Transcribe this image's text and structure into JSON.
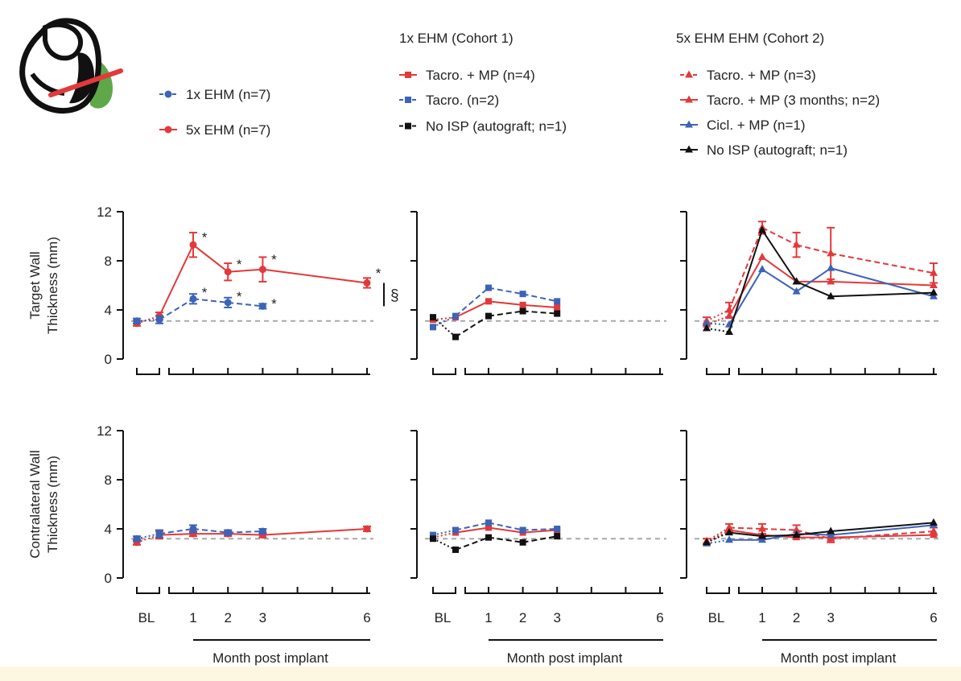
{
  "colors": {
    "red": "#e2393b",
    "blue": "#3b63b8",
    "black": "#111111",
    "ref": "#a8a8a8",
    "green": "#5fa84a"
  },
  "icon": "heart-cross-section-icon",
  "legends": {
    "p1": [
      {
        "label": "1x EHM (n=7)",
        "color": "#3b63b8",
        "marker": "circle",
        "dash": true
      },
      {
        "label": "5x EHM (n=7)",
        "color": "#e2393b",
        "marker": "circle",
        "dash": false
      }
    ],
    "p2_title": "1x EHM (Cohort 1)",
    "p2": [
      {
        "label": "Tacro. + MP (n=4)",
        "color": "#e2393b",
        "marker": "square",
        "dash": false
      },
      {
        "label": "Tacro. (n=2)",
        "color": "#3b63b8",
        "marker": "square",
        "dash": true
      },
      {
        "label": "No ISP (autograft; n=1)",
        "color": "#111111",
        "marker": "square",
        "dash": true
      }
    ],
    "p3_title": "5x EHM EHM (Cohort 2)",
    "p3": [
      {
        "label": "Tacro. + MP (n=3)",
        "color": "#e2393b",
        "marker": "triangle",
        "dash": true
      },
      {
        "label": "Tacro. + MP (3 months; n=2)",
        "color": "#e2393b",
        "marker": "triangle",
        "dash": false
      },
      {
        "label": "Cicl. + MP (n=1)",
        "color": "#3b63b8",
        "marker": "triangle",
        "dash": false
      },
      {
        "label": "No ISP (autograft; n=1)",
        "color": "#111111",
        "marker": "triangle",
        "dash": false
      }
    ]
  },
  "sig": {
    "star": "*",
    "section": "§"
  },
  "chart_data": [
    {
      "type": "line",
      "panel": "target-1",
      "ylabel": [
        "Target Wall",
        "Thickness (mm)"
      ],
      "ylim": [
        0,
        12
      ],
      "yticks": [
        0,
        4,
        8,
        12
      ],
      "xticks": [
        "BL",
        "1",
        "2",
        "3",
        "6"
      ],
      "xlabel": "Month post implant",
      "reference_line": 3.1,
      "series": [
        {
          "name": "5x EHM (n=7)",
          "color": "#e2393b",
          "marker": "circle",
          "dash": false,
          "x": [
            -1,
            0,
            1,
            2,
            3,
            6
          ],
          "y": [
            2.9,
            3.5,
            9.3,
            7.1,
            7.3,
            6.2
          ],
          "err": [
            0.2,
            0.3,
            1.0,
            0.7,
            1.0,
            0.4
          ]
        },
        {
          "name": "1x EHM (n=7)",
          "color": "#3b63b8",
          "marker": "circle",
          "dash": true,
          "x": [
            -1,
            0,
            1,
            2,
            3
          ],
          "y": [
            3.1,
            3.2,
            4.9,
            4.6,
            4.3
          ],
          "err": [
            0.2,
            0.3,
            0.4,
            0.4,
            0.2
          ]
        }
      ],
      "stars": [
        [
          1,
          9.8
        ],
        [
          2,
          7.6
        ],
        [
          3,
          8.0
        ],
        [
          6,
          6.9
        ],
        [
          1,
          5.3
        ],
        [
          2,
          5.0
        ],
        [
          3,
          4.4
        ]
      ]
    },
    {
      "type": "line",
      "panel": "target-2",
      "ylim": [
        0,
        12
      ],
      "yticks": [
        0,
        4,
        8,
        12
      ],
      "xticks": [
        "BL",
        "1",
        "2",
        "3",
        "6"
      ],
      "xlabel": "Month post implant",
      "reference_line": 3.1,
      "series": [
        {
          "name": "Tacro. + MP (n=4)",
          "color": "#e2393b",
          "marker": "square",
          "dash": false,
          "x": [
            -1,
            0,
            1,
            2,
            3
          ],
          "y": [
            3.2,
            3.4,
            4.7,
            4.4,
            4.2
          ]
        },
        {
          "name": "Tacro. (n=2)",
          "color": "#3b63b8",
          "marker": "square",
          "dash": true,
          "x": [
            -1,
            0,
            1,
            2,
            3
          ],
          "y": [
            2.6,
            3.5,
            5.8,
            5.3,
            4.7
          ]
        },
        {
          "name": "No ISP (autograft; n=1)",
          "color": "#111111",
          "marker": "square",
          "dash": true,
          "x": [
            -1,
            0,
            1,
            2,
            3
          ],
          "y": [
            3.4,
            1.8,
            3.5,
            3.9,
            3.7
          ]
        }
      ]
    },
    {
      "type": "line",
      "panel": "target-3",
      "ylim": [
        0,
        12
      ],
      "yticks": [
        0,
        4,
        8,
        12
      ],
      "xticks": [
        "BL",
        "1",
        "2",
        "3",
        "6"
      ],
      "xlabel": "Month post implant",
      "reference_line": 3.1,
      "series": [
        {
          "name": "Tacro. + MP (n=3)",
          "color": "#e2393b",
          "marker": "triangle",
          "dash": true,
          "x": [
            -1,
            0,
            1,
            2,
            3,
            6
          ],
          "y": [
            3.1,
            4.0,
            10.7,
            9.3,
            8.6,
            7.0
          ],
          "err": [
            0.3,
            0.6,
            0.5,
            1.0,
            2.1,
            0.8
          ]
        },
        {
          "name": "Tacro. + MP (3 months; n=2)",
          "color": "#e2393b",
          "marker": "triangle",
          "dash": false,
          "x": [
            -1,
            0,
            1,
            2,
            3,
            6
          ],
          "y": [
            2.8,
            3.5,
            8.3,
            6.3,
            6.3,
            6.0
          ]
        },
        {
          "name": "Cicl. + MP (n=1)",
          "color": "#3b63b8",
          "marker": "triangle",
          "dash": false,
          "x": [
            -1,
            0,
            1,
            2,
            3,
            6
          ],
          "y": [
            2.9,
            2.8,
            7.3,
            5.5,
            7.4,
            5.1
          ]
        },
        {
          "name": "No ISP (autograft; n=1)",
          "color": "#111111",
          "marker": "triangle",
          "dash": false,
          "x": [
            -1,
            0,
            1,
            2,
            3,
            6
          ],
          "y": [
            2.5,
            2.2,
            10.5,
            6.3,
            5.1,
            5.4
          ]
        }
      ]
    },
    {
      "type": "line",
      "panel": "contra-1",
      "ylabel": [
        "Contralateral Wall",
        "Thickness (mm)"
      ],
      "ylim": [
        0,
        12
      ],
      "yticks": [
        0,
        4,
        8,
        12
      ],
      "xticks": [
        "BL",
        "1",
        "2",
        "3",
        "6"
      ],
      "xlabel": "Month post implant",
      "reference_line": 3.2,
      "series": [
        {
          "name": "5x EHM (n=7)",
          "color": "#e2393b",
          "marker": "circle",
          "dash": false,
          "x": [
            -1,
            0,
            1,
            2,
            3,
            6
          ],
          "y": [
            2.9,
            3.5,
            3.6,
            3.6,
            3.5,
            4.0
          ],
          "err": [
            0.2,
            0.3,
            0.2,
            0.2,
            0.2,
            0.2
          ]
        },
        {
          "name": "1x EHM (n=7)",
          "color": "#3b63b8",
          "marker": "circle",
          "dash": true,
          "x": [
            -1,
            0,
            1,
            2,
            3
          ],
          "y": [
            3.2,
            3.6,
            4.0,
            3.7,
            3.8
          ],
          "err": [
            0.2,
            0.3,
            0.3,
            0.2,
            0.2
          ]
        }
      ]
    },
    {
      "type": "line",
      "panel": "contra-2",
      "ylim": [
        0,
        12
      ],
      "yticks": [
        0,
        4,
        8,
        12
      ],
      "xticks": [
        "BL",
        "1",
        "2",
        "3",
        "6"
      ],
      "xlabel": "Month post implant",
      "reference_line": 3.2,
      "series": [
        {
          "name": "Tacro. + MP (n=4)",
          "color": "#e2393b",
          "marker": "square",
          "dash": false,
          "x": [
            -1,
            0,
            1,
            2,
            3
          ],
          "y": [
            3.3,
            3.7,
            4.1,
            3.7,
            3.9
          ]
        },
        {
          "name": "Tacro. (n=2)",
          "color": "#3b63b8",
          "marker": "square",
          "dash": true,
          "x": [
            -1,
            0,
            1,
            2,
            3
          ],
          "y": [
            3.5,
            3.9,
            4.5,
            3.9,
            4.0
          ]
        },
        {
          "name": "No ISP (autograft; n=1)",
          "color": "#111111",
          "marker": "square",
          "dash": true,
          "x": [
            -1,
            0,
            1,
            2,
            3
          ],
          "y": [
            3.2,
            2.3,
            3.3,
            2.9,
            3.4
          ]
        }
      ]
    },
    {
      "type": "line",
      "panel": "contra-3",
      "ylim": [
        0,
        12
      ],
      "yticks": [
        0,
        4,
        8,
        12
      ],
      "xticks": [
        "BL",
        "1",
        "2",
        "3",
        "6"
      ],
      "xlabel": "Month post implant",
      "reference_line": 3.2,
      "series": [
        {
          "name": "Tacro. + MP (n=3)",
          "color": "#e2393b",
          "marker": "triangle",
          "dash": true,
          "x": [
            -1,
            0,
            1,
            2,
            3,
            6
          ],
          "y": [
            3.0,
            4.1,
            4.0,
            3.9,
            3.2,
            3.8
          ],
          "err": [
            0.2,
            0.3,
            0.4,
            0.4,
            0.3,
            0.3
          ]
        },
        {
          "name": "Tacro. + MP (3 months; n=2)",
          "color": "#e2393b",
          "marker": "triangle",
          "dash": false,
          "x": [
            -1,
            0,
            1,
            2,
            3,
            6
          ],
          "y": [
            2.9,
            3.9,
            3.5,
            3.3,
            3.3,
            3.5
          ]
        },
        {
          "name": "Cicl. + MP (n=1)",
          "color": "#3b63b8",
          "marker": "triangle",
          "dash": false,
          "x": [
            -1,
            0,
            1,
            2,
            3,
            6
          ],
          "y": [
            2.8,
            3.1,
            3.1,
            3.6,
            3.5,
            4.3
          ]
        },
        {
          "name": "No ISP (autograft; n=1)",
          "color": "#111111",
          "marker": "triangle",
          "dash": false,
          "x": [
            -1,
            0,
            1,
            2,
            3,
            6
          ],
          "y": [
            2.9,
            3.7,
            3.4,
            3.5,
            3.8,
            4.5
          ]
        }
      ]
    }
  ]
}
